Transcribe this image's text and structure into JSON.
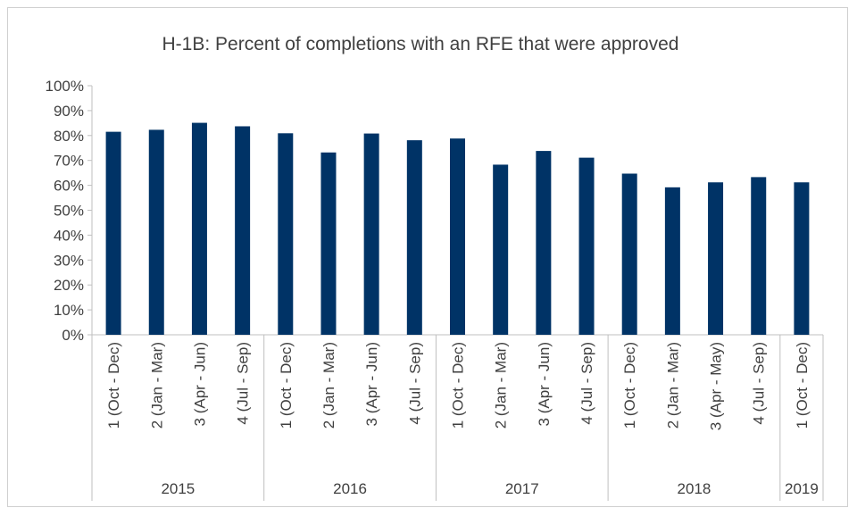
{
  "chart_data": {
    "type": "bar",
    "title": "H-1B: Percent of completions with an RFE that were approved",
    "xlabel": "",
    "ylabel": "",
    "ylim": [
      0,
      100
    ],
    "y_ticks": [
      "0%",
      "10%",
      "20%",
      "30%",
      "40%",
      "50%",
      "60%",
      "70%",
      "80%",
      "90%",
      "100%"
    ],
    "grid": false,
    "legend": "none",
    "bar_color": "#003366",
    "categories": [
      "1 (Oct - Dec)",
      "2 (Jan - Mar)",
      "3 (Apr - Jun)",
      "4 (Jul - Sep)",
      "1 (Oct - Dec)",
      "2 (Jan - Mar)",
      "3 (Apr - Jun)",
      "4 (Jul - Sep)",
      "1 (Oct - Dec)",
      "2 (Jan - Mar)",
      "3 (Apr - Jun)",
      "4 (Jul - Sep)",
      "1 (Oct - Dec)",
      "2 (Jan - Mar)",
      "3 (Apr - May)",
      "4 (Jul - Sep)",
      "1 (Oct - Dec)"
    ],
    "groups": [
      {
        "label": "2015",
        "count": 4
      },
      {
        "label": "2016",
        "count": 4
      },
      {
        "label": "2017",
        "count": 4
      },
      {
        "label": "2018",
        "count": 4
      },
      {
        "label": "2019",
        "count": 1
      }
    ],
    "values": [
      81.5,
      82.3,
      85.1,
      83.7,
      80.9,
      73.2,
      80.8,
      78.1,
      78.8,
      68.3,
      73.8,
      71.1,
      64.7,
      59.2,
      61.2,
      63.3,
      61.2
    ]
  }
}
